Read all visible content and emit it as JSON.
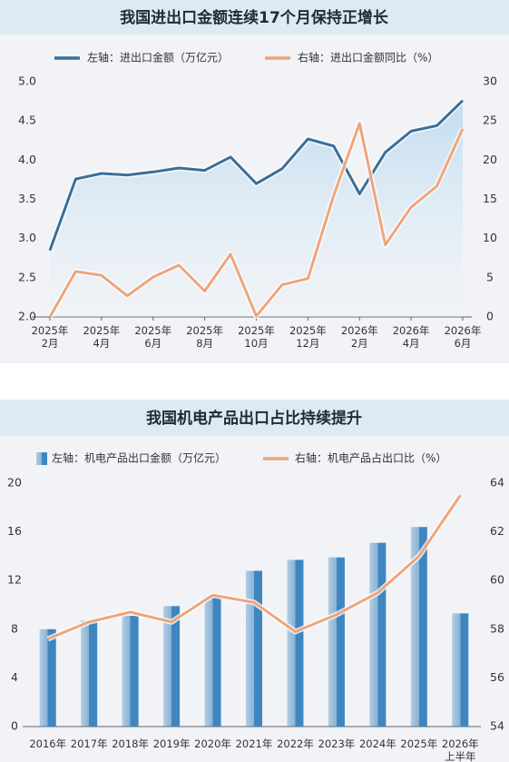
{
  "chart_data": [
    {
      "type": "line",
      "title": "我国进出口金额连续17个月保持正增长",
      "categories": [
        "2025年\n2月",
        null,
        "2025年\n4月",
        null,
        "2025年\n6月",
        null,
        "2025年\n8月",
        null,
        "2025年\n10月",
        null,
        "2025年\n12月",
        null,
        "2026年\n2月",
        null,
        "2026年\n4月",
        null,
        "2026年\n6月"
      ],
      "series": [
        {
          "name": "左轴：进出口金额（万亿元）",
          "color": "#3c6e98",
          "values": [
            2.85,
            3.76,
            3.83,
            3.81,
            3.85,
            3.9,
            3.87,
            4.04,
            3.7,
            3.89,
            4.27,
            4.18,
            3.57,
            4.1,
            4.37,
            4.44,
            4.76
          ]
        },
        {
          "name": "右轴：进出口金额同比（%）",
          "color": "#eea57c",
          "axis": "y2",
          "values": [
            0,
            5.8,
            5.3,
            2.7,
            5.1,
            6.6,
            3.3,
            8.0,
            0.1,
            4.1,
            4.9,
            15.5,
            24.7,
            9.2,
            14.0,
            16.7,
            24.0
          ]
        }
      ],
      "ylim": [
        2.0,
        5.0
      ],
      "yticks": [
        {
          "value": 2.0,
          "label": "2.0"
        },
        {
          "value": 2.5,
          "label": "2.5"
        },
        {
          "value": 3.0,
          "label": "3.0"
        },
        {
          "value": 3.5,
          "label": "3.5"
        },
        {
          "value": 4.0,
          "label": "4.0"
        },
        {
          "value": 4.5,
          "label": "4.5"
        },
        {
          "value": 5.0,
          "label": "5.0"
        }
      ],
      "y2lim": [
        0,
        30
      ],
      "y2ticks": [
        0,
        5,
        10,
        15,
        20,
        25,
        30
      ]
    },
    {
      "type": "bar",
      "title": "我国机电产品出口占比持续提升",
      "categories": [
        "2016年",
        "2017年",
        "2018年",
        "2019年",
        "2020年",
        "2021年",
        "2022年",
        "2023年",
        "2024年",
        "2025年",
        "2026年\n上半年"
      ],
      "series": [
        {
          "name": "左轴：机电产品出口金额（万亿元）",
          "color": "#3f86c0",
          "values": [
            8.0,
            8.7,
            9.1,
            9.9,
            10.7,
            12.8,
            13.7,
            13.9,
            15.1,
            16.4,
            9.3
          ]
        },
        {
          "name": "右轴：机电产品占出口比（%）",
          "color": "#eea57c",
          "type": "line",
          "axis": "y2",
          "values": [
            57.6,
            58.3,
            58.7,
            58.3,
            59.4,
            59.1,
            57.9,
            58.6,
            59.5,
            61.0,
            63.5
          ]
        }
      ],
      "ylim": [
        0,
        20
      ],
      "yticks": [
        0,
        4,
        8,
        12,
        16,
        20
      ],
      "y2lim": [
        54,
        64
      ],
      "y2ticks": [
        54,
        56,
        58,
        60,
        62,
        64
      ]
    }
  ]
}
